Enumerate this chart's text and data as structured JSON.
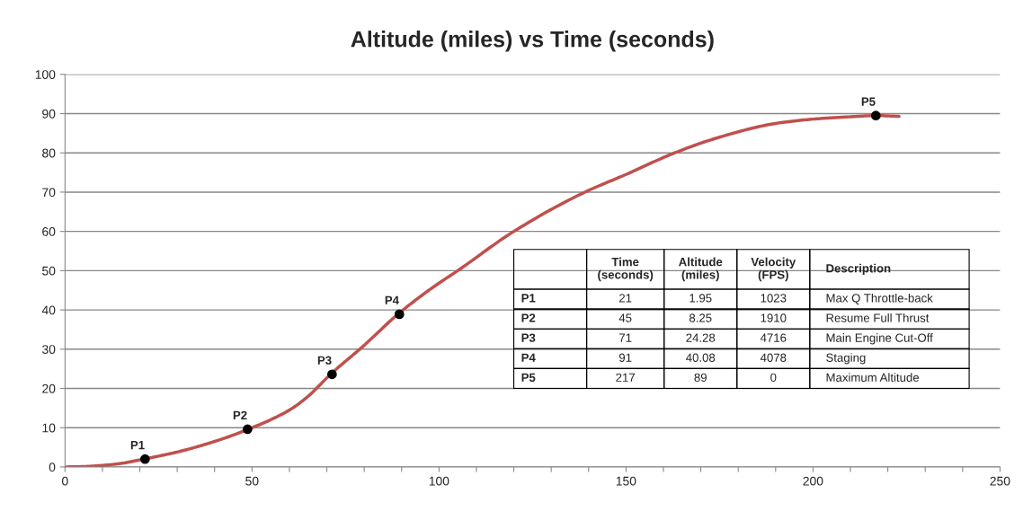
{
  "chart_data": {
    "type": "line",
    "title": "Altitude (miles) vs Time (seconds)",
    "series": [
      {
        "color": "#c0504d",
        "x": [
          0,
          5,
          10,
          15,
          21,
          30,
          40,
          49,
          60,
          65,
          71,
          80,
          89,
          98,
          105,
          120,
          139,
          150,
          163,
          175,
          190,
          200,
          210,
          217,
          223
        ],
        "values": [
          0,
          0.1,
          0.4,
          0.9,
          2.0,
          3.8,
          6.5,
          9.6,
          14.5,
          18,
          23.6,
          31,
          38.9,
          45.5,
          50,
          60,
          70,
          74.5,
          80,
          84,
          87.5,
          88.6,
          89.2,
          89.5,
          89.3
        ]
      },
      {
        "type": "scatter",
        "color": "#000000",
        "marker": "circle",
        "x": [
          21.4,
          48.8,
          71.4,
          89.4,
          216.8
        ],
        "values": [
          2.0,
          9.6,
          23.6,
          38.9,
          89.5
        ]
      }
    ],
    "annotations": [
      {
        "text": "P1",
        "x": 21.4,
        "y": 2.0
      },
      {
        "text": "P2",
        "x": 48.8,
        "y": 9.6
      },
      {
        "text": "P3",
        "x": 71.4,
        "y": 23.6
      },
      {
        "text": "P4",
        "x": 89.4,
        "y": 38.9
      },
      {
        "text": "P5",
        "x": 216.8,
        "y": 89.5
      },
      "Time\n(seconds)",
      "Altitude\n(miles)",
      "Velocity\n(FPS)",
      "Description",
      "P1",
      "21",
      "1.95",
      "1023",
      "Max Q Throttle-back",
      "P2",
      "45",
      "8.25",
      "1910",
      "Resume Full Thrust",
      "P3",
      "71",
      "24.28",
      "4716",
      "Main Engine Cut-Off",
      "P4",
      "91",
      "40.08",
      "4078",
      "Staging",
      "P5",
      "217",
      "89",
      "0",
      "Maximum Altitude"
    ],
    "xlim": [
      0,
      250
    ],
    "ylim": [
      0,
      100
    ],
    "xticks": [
      0,
      {
        "value": 10,
        "label": null
      },
      {
        "value": 20,
        "label": null
      },
      {
        "value": 30,
        "label": null
      },
      {
        "value": 40,
        "label": null
      },
      50,
      {
        "value": 60,
        "label": null
      },
      {
        "value": 70,
        "label": null
      },
      {
        "value": 80,
        "label": null
      },
      {
        "value": 90,
        "label": null
      },
      100,
      {
        "value": 110,
        "label": null
      },
      {
        "value": 120,
        "label": null
      },
      {
        "value": 130,
        "label": null
      },
      {
        "value": 140,
        "label": null
      },
      150,
      {
        "value": 160,
        "label": null
      },
      {
        "value": 170,
        "label": null
      },
      {
        "value": 180,
        "label": null
      },
      {
        "value": 190,
        "label": null
      },
      200,
      {
        "value": 210,
        "label": null
      },
      {
        "value": 220,
        "label": null
      },
      {
        "value": 230,
        "label": null
      },
      {
        "value": 240,
        "label": null
      },
      250
    ],
    "yticks": [
      0,
      10,
      20,
      30,
      40,
      50,
      60,
      70,
      80,
      90,
      100
    ],
    "grid": "y",
    "legend": false
  }
}
